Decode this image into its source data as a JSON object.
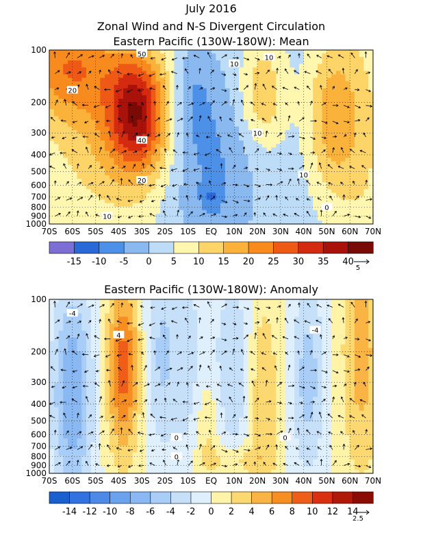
{
  "chart_data": [
    {
      "type": "heatmap",
      "title_lines": [
        "July 2016",
        "Zonal Wind and N-S Divergent Circulation",
        "Eastern Pacific (130W-180W): Mean"
      ],
      "x_ticks": [
        "70S",
        "60S",
        "50S",
        "40S",
        "30S",
        "20S",
        "10S",
        "EQ",
        "10N",
        "20N",
        "30N",
        "40N",
        "50N",
        "60N",
        "70N"
      ],
      "y_ticks": [
        "100",
        "200",
        "300",
        "400",
        "500",
        "600",
        "700",
        "800",
        "900",
        "1000"
      ],
      "y_scale": "log",
      "ylim": [
        1000,
        100
      ],
      "xlim": [
        -70,
        70
      ],
      "colorbar_labels": [
        "-15",
        "-10",
        "-5",
        "0",
        "5",
        "10",
        "15",
        "20",
        "25",
        "30",
        "35",
        "40"
      ],
      "colorbar_colors": [
        "#7b6fd6",
        "#2a6ad8",
        "#4d90e8",
        "#8ab9f0",
        "#bcdcf8",
        "#fff6b0",
        "#fdd468",
        "#fbb23a",
        "#f78b1e",
        "#ee5a16",
        "#d42b10",
        "#a8120a",
        "#7a0a05"
      ],
      "vector_ref": "5",
      "contour_labels": [
        "50",
        "20",
        "40",
        "20",
        "10",
        "10",
        "10",
        "0",
        "10",
        "10"
      ]
    },
    {
      "type": "heatmap",
      "title_lines": [
        "Eastern Pacific (130W-180W): Anomaly"
      ],
      "x_ticks": [
        "70S",
        "60S",
        "50S",
        "40S",
        "30S",
        "20S",
        "10S",
        "EQ",
        "10N",
        "20N",
        "30N",
        "40N",
        "50N",
        "60N",
        "70N"
      ],
      "y_ticks": [
        "100",
        "200",
        "300",
        "400",
        "500",
        "600",
        "700",
        "800",
        "900",
        "1000"
      ],
      "y_scale": "log",
      "ylim": [
        1000,
        100
      ],
      "xlim": [
        -70,
        70
      ],
      "colorbar_labels": [
        "-14",
        "-12",
        "-10",
        "-8",
        "-6",
        "-4",
        "-2",
        "0",
        "2",
        "4",
        "6",
        "8",
        "10",
        "12",
        "14"
      ],
      "colorbar_colors": [
        "#1a5fd0",
        "#2f72e0",
        "#4d8ae8",
        "#6aa2ee",
        "#8ab8f2",
        "#a8cdf6",
        "#c6e0fa",
        "#dff0fc",
        "#fff3a8",
        "#fcd870",
        "#f9b444",
        "#f78e22",
        "#ee5e18",
        "#d83010",
        "#b01808",
        "#8a0c04"
      ],
      "vector_ref": "2.5",
      "contour_labels": [
        "-4",
        "4",
        "-4",
        "0",
        "0",
        "0"
      ]
    }
  ]
}
